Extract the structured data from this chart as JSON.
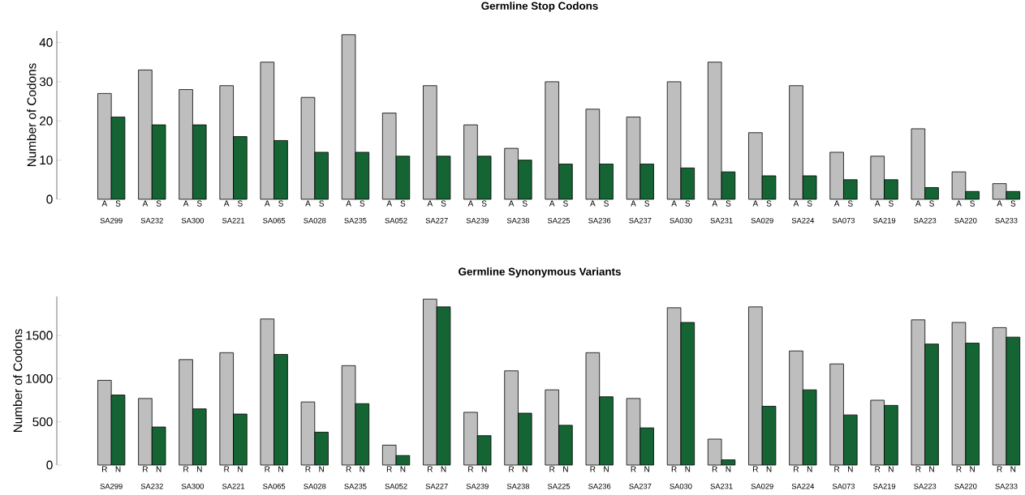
{
  "chart_data": [
    {
      "type": "bar",
      "title": "Germline Stop Codons",
      "ylabel": "Number of Codons",
      "categories": [
        "SA299",
        "SA232",
        "SA300",
        "SA221",
        "SA065",
        "SA028",
        "SA235",
        "SA052",
        "SA227",
        "SA239",
        "SA238",
        "SA225",
        "SA236",
        "SA237",
        "SA030",
        "SA231",
        "SA029",
        "SA224",
        "SA073",
        "SA219",
        "SA223",
        "SA220",
        "SA233"
      ],
      "series": [
        {
          "name": "A",
          "color": "#bebebe",
          "values": [
            27,
            33,
            28,
            29,
            35,
            26,
            42,
            22,
            29,
            19,
            13,
            30,
            23,
            21,
            30,
            35,
            17,
            29,
            12,
            11,
            18,
            7,
            4
          ]
        },
        {
          "name": "S",
          "color": "#156434",
          "values": [
            21,
            19,
            19,
            16,
            15,
            12,
            12,
            11,
            11,
            11,
            10,
            9,
            9,
            9,
            8,
            7,
            6,
            6,
            5,
            5,
            3,
            2,
            2
          ]
        }
      ],
      "ylim": [
        0,
        43
      ],
      "yticks": [
        0,
        10,
        20,
        30,
        40
      ]
    },
    {
      "type": "bar",
      "title": "Germline Synonymous Variants",
      "ylabel": "Number of Codons",
      "categories": [
        "SA299",
        "SA232",
        "SA300",
        "SA221",
        "SA065",
        "SA028",
        "SA235",
        "SA052",
        "SA227",
        "SA239",
        "SA238",
        "SA225",
        "SA236",
        "SA237",
        "SA030",
        "SA231",
        "SA029",
        "SA224",
        "SA073",
        "SA219",
        "SA223",
        "SA220",
        "SA233"
      ],
      "series": [
        {
          "name": "R",
          "color": "#bebebe",
          "values": [
            980,
            770,
            1220,
            1300,
            1690,
            730,
            1150,
            230,
            1920,
            610,
            1090,
            870,
            1300,
            770,
            1820,
            300,
            1830,
            1320,
            1170,
            750,
            1680,
            1650,
            1590
          ]
        },
        {
          "name": "N",
          "color": "#156434",
          "values": [
            810,
            440,
            650,
            590,
            1280,
            380,
            710,
            110,
            1830,
            340,
            600,
            460,
            790,
            430,
            1650,
            60,
            680,
            870,
            580,
            690,
            1400,
            1410,
            1480
          ]
        }
      ],
      "ylim": [
        0,
        1950
      ],
      "yticks": [
        0,
        500,
        1000,
        1500
      ]
    }
  ]
}
